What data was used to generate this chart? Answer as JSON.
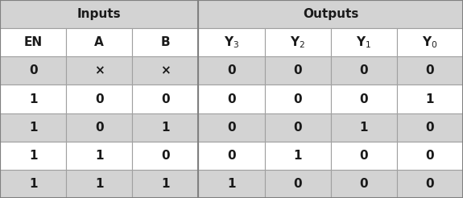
{
  "headers": [
    "EN",
    "A",
    "B",
    "Y_3",
    "Y_2",
    "Y_1",
    "Y_0"
  ],
  "rows": [
    [
      "0",
      "×",
      "×",
      "0",
      "0",
      "0",
      "0"
    ],
    [
      "1",
      "0",
      "0",
      "0",
      "0",
      "0",
      "1"
    ],
    [
      "1",
      "0",
      "1",
      "0",
      "0",
      "1",
      "0"
    ],
    [
      "1",
      "1",
      "0",
      "0",
      "1",
      "0",
      "0"
    ],
    [
      "1",
      "1",
      "1",
      "1",
      "0",
      "0",
      "0"
    ]
  ],
  "num_cols": 7,
  "inputs_cols": 3,
  "outputs_cols": 4,
  "header_group_bg": "#d3d3d3",
  "header_col_bg": "#ffffff",
  "row_bg_even": "#d3d3d3",
  "row_bg_odd": "#ffffff",
  "border_color": "#a0a0a0",
  "text_color": "#1a1a1a",
  "font_size": 11,
  "group_font_size": 11,
  "fig_width": 5.75,
  "fig_height": 2.46,
  "dpi": 100
}
